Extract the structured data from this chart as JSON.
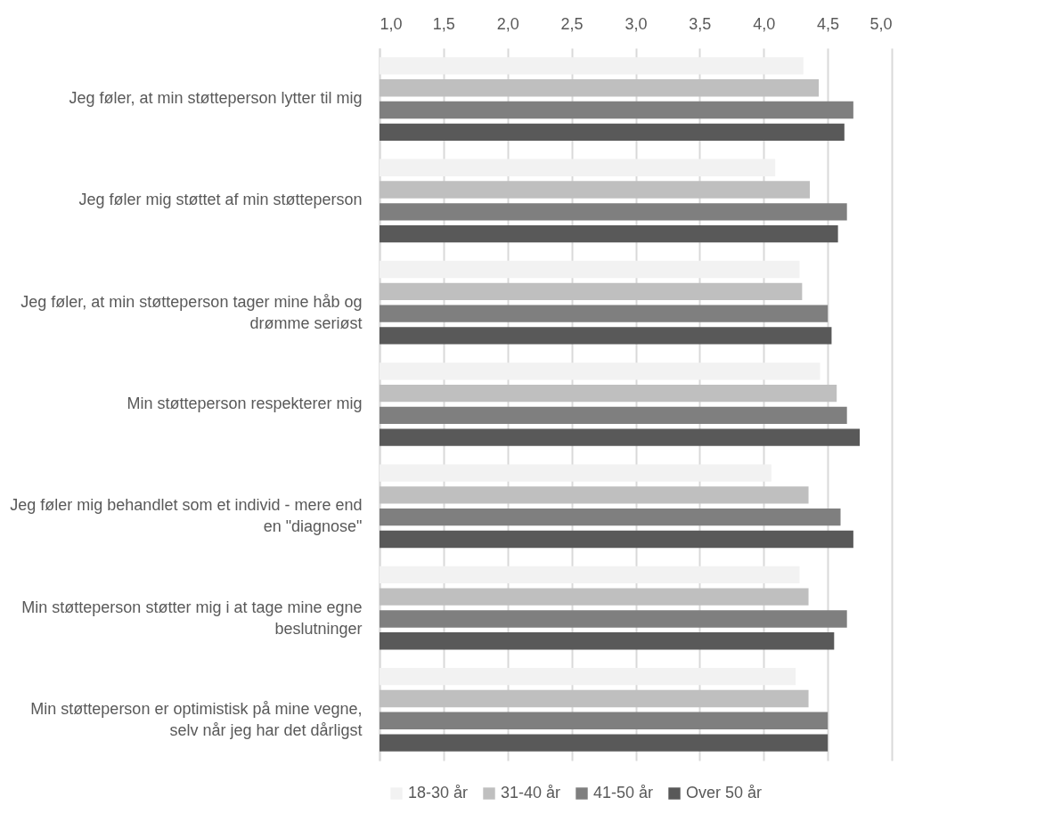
{
  "chart_data": {
    "type": "bar",
    "orientation": "horizontal",
    "categories": [
      "Jeg føler, at min støtteperson lytter til mig",
      "Jeg føler mig støttet af min støtteperson",
      "Jeg føler, at min støtteperson tager mine håb og drømme seriøst",
      "Min støtteperson respekterer mig",
      "Jeg føler mig behandlet som et individ - mere end en \"diagnose\"",
      "Min støtteperson støtter mig i at tage mine egne beslutninger",
      "Min støtteperson er optimistisk på mine vegne, selv når jeg har det dårligst"
    ],
    "series": [
      {
        "name": "18-30 år",
        "color": "#f2f2f2",
        "values": [
          4.31,
          4.09,
          4.28,
          4.44,
          4.06,
          4.28,
          4.25
        ]
      },
      {
        "name": "31-40 år",
        "color": "#bfbfbf",
        "values": [
          4.43,
          4.36,
          4.3,
          4.57,
          4.35,
          4.35,
          4.35
        ]
      },
      {
        "name": "41-50 år",
        "color": "#7f7f7f",
        "values": [
          4.7,
          4.65,
          4.5,
          4.65,
          4.6,
          4.65,
          4.5
        ]
      },
      {
        "name": "Over 50 år",
        "color": "#595959",
        "values": [
          4.63,
          4.58,
          4.53,
          4.75,
          4.7,
          4.55,
          4.5
        ]
      }
    ],
    "xlim": [
      1,
      5
    ],
    "xticks": [
      {
        "value": 1,
        "label": "1,0"
      },
      {
        "value": 1.5,
        "label": "1,5"
      },
      {
        "value": 2,
        "label": "2,0"
      },
      {
        "value": 2.5,
        "label": "2,5"
      },
      {
        "value": 3,
        "label": "3,0"
      },
      {
        "value": 3.5,
        "label": "3,5"
      },
      {
        "value": 4,
        "label": "4,0"
      },
      {
        "value": 4.5,
        "label": "4,5"
      },
      {
        "value": 5,
        "label": "5,0"
      }
    ],
    "grid": "x",
    "legend": "bottom"
  }
}
